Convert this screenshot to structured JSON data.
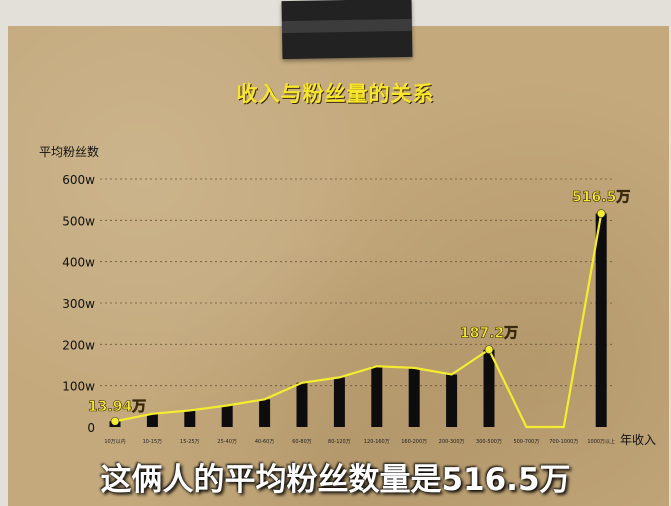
{
  "title": "收入与粉丝量的关系",
  "subtitle": "这俩人的平均粉丝数量是516.5万",
  "colors": {
    "bar": "#0d0d0d",
    "line": "#f4ec30",
    "title": "#f7e62a",
    "paper": "#c4a97c"
  },
  "chart_data": {
    "type": "bar",
    "title": "收入与粉丝量的关系",
    "ylabel": "平均粉丝数",
    "xlabel": "年收入",
    "ylim": [
      0,
      600
    ],
    "yticks": [
      "0",
      "100w",
      "200w",
      "300w",
      "400w",
      "500w",
      "600w"
    ],
    "grid": true,
    "categories": [
      "10万以内",
      "10-15万",
      "15-25万",
      "25-40万",
      "40-60万",
      "60-80万",
      "80-120万",
      "120-160万",
      "160-200万",
      "200-300万",
      "300-500万",
      "500-700万",
      "700-1000万",
      "1000万以上"
    ],
    "series": [
      {
        "type": "bar",
        "values": [
          13.94,
          32,
          40,
          52,
          67,
          107,
          120,
          147,
          143,
          127,
          187.2,
          0,
          0,
          516.5
        ]
      },
      {
        "type": "line",
        "values": [
          13.94,
          32,
          40,
          52,
          67,
          107,
          120,
          147,
          143,
          127,
          187.2,
          0,
          0,
          516.5
        ]
      }
    ],
    "annotations": [
      {
        "index": 0,
        "text": "13.94万"
      },
      {
        "index": 10,
        "text": "187.2万"
      },
      {
        "index": 13,
        "text": "516.5万"
      }
    ]
  }
}
